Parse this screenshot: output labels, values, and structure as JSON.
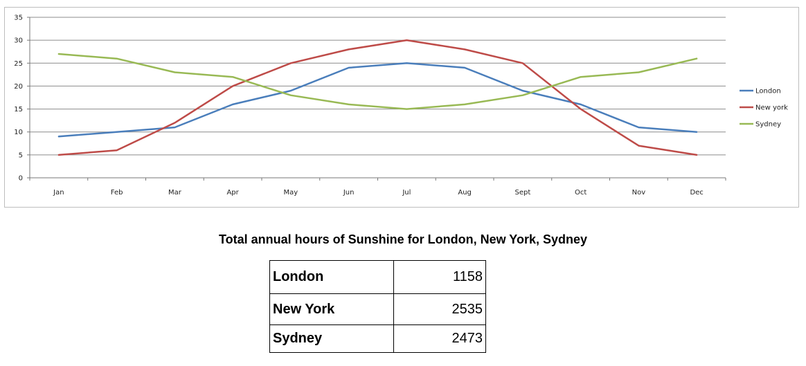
{
  "chart_data": {
    "type": "line",
    "categories": [
      "Jan",
      "Feb",
      "Mar",
      "Apr",
      "May",
      "Jun",
      "Jul",
      "Aug",
      "Sept",
      "Oct",
      "Nov",
      "Dec"
    ],
    "series": [
      {
        "name": "London",
        "color": "#4a7ebb",
        "values": [
          9,
          10,
          11,
          16,
          19,
          24,
          25,
          24,
          19,
          16,
          11,
          10
        ]
      },
      {
        "name": "New york",
        "color": "#be4b48",
        "values": [
          5,
          6,
          12,
          20,
          25,
          28,
          30,
          28,
          25,
          15,
          7,
          5
        ]
      },
      {
        "name": "Sydney",
        "color": "#98b954",
        "values": [
          27,
          26,
          23,
          22,
          18,
          16,
          15,
          16,
          18,
          22,
          23,
          26
        ]
      }
    ],
    "ylim": [
      0,
      35
    ],
    "yticks": [
      0,
      5,
      10,
      15,
      20,
      25,
      30,
      35
    ],
    "grid": true,
    "legend": "right"
  },
  "summary": {
    "title": "Total annual hours of Sunshine for London, New York, Sydney",
    "rows": [
      {
        "city": "London",
        "hours": "1158"
      },
      {
        "city": "New York",
        "hours": "2535"
      },
      {
        "city": "Sydney",
        "hours": "2473"
      }
    ]
  }
}
